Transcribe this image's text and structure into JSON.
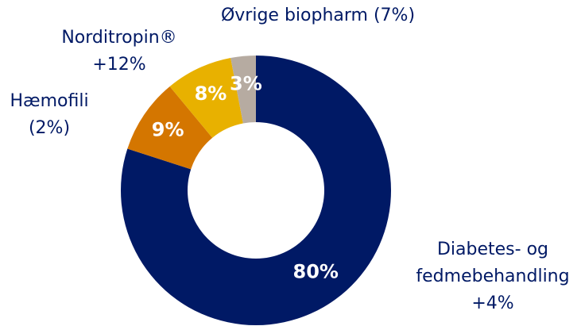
{
  "chart_data": {
    "type": "donut",
    "categories": [
      "Diabetes- og\nfedmebehandling\n+4%",
      "Hæmofili\n(2%)",
      "Norditropin®\n+12%",
      "Øvrige biopharm (7%)"
    ],
    "values": [
      80,
      9,
      8,
      3
    ],
    "value_labels": [
      "80%",
      "9%",
      "8%",
      "3%"
    ],
    "colors": [
      "#001965",
      "#d47600",
      "#e8b100",
      "#b6aba1"
    ]
  }
}
